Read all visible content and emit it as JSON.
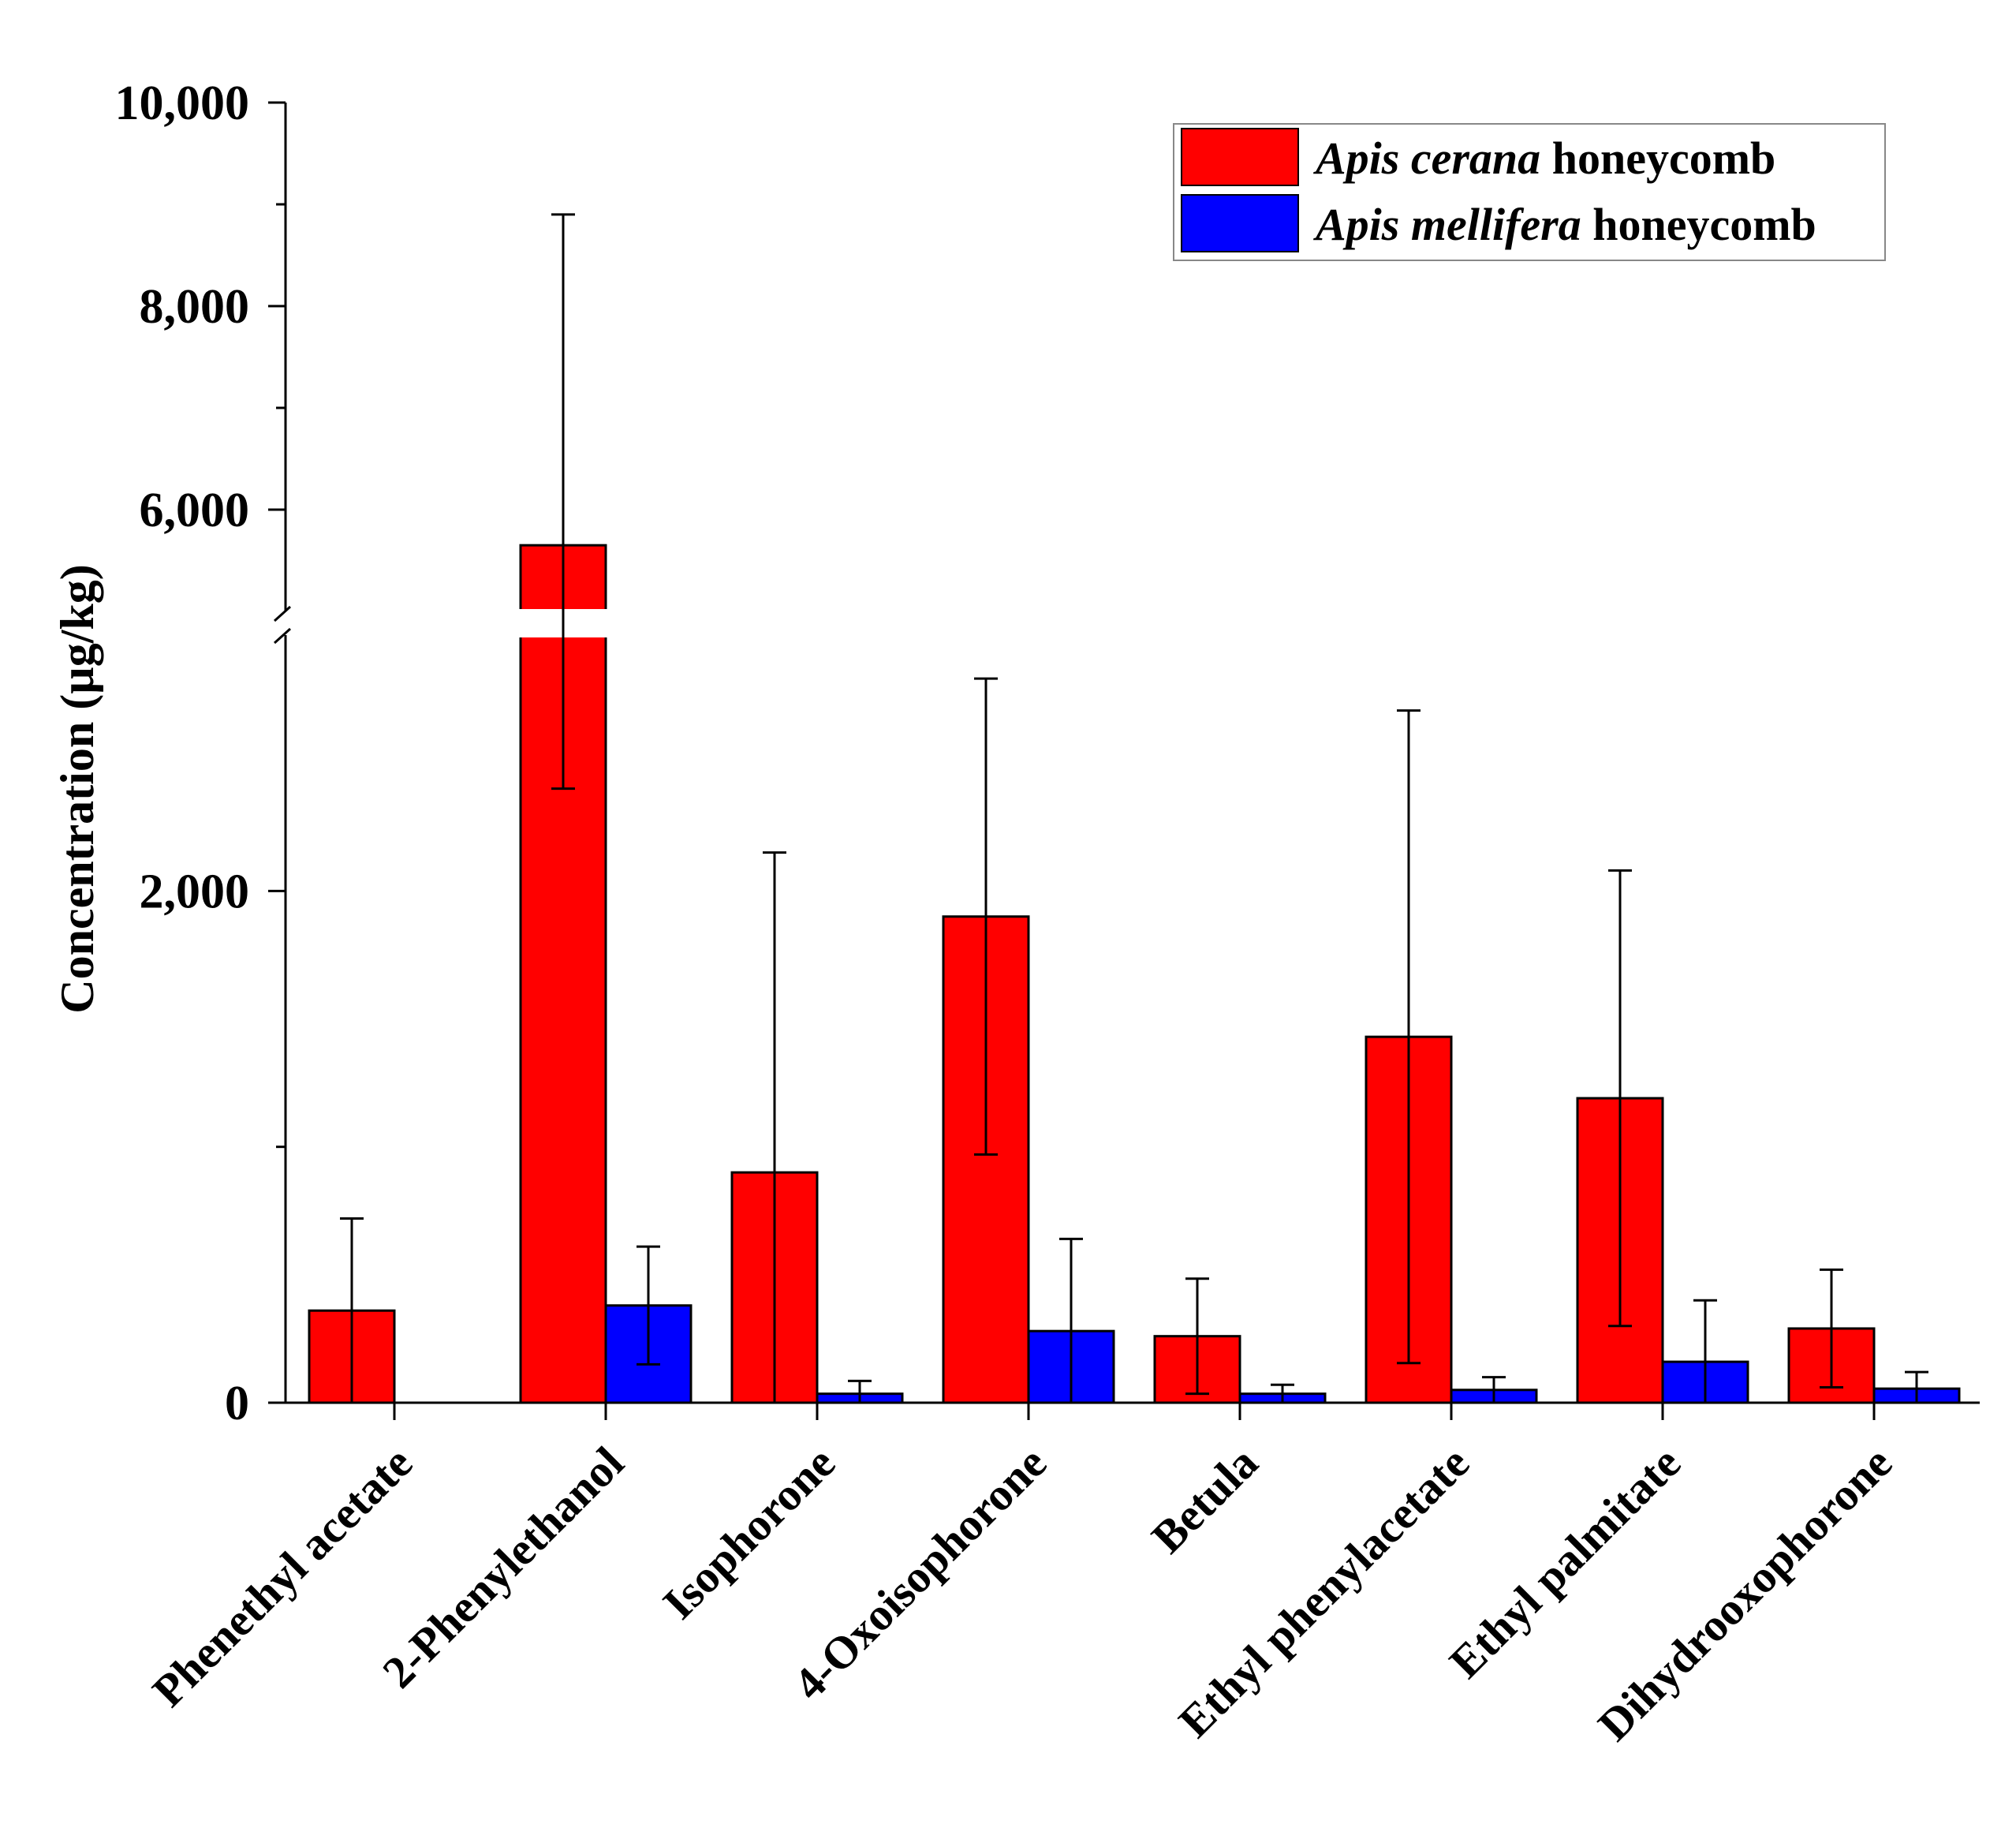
{
  "chart_data": {
    "type": "bar",
    "ylabel": "Concentration (µg/kg)",
    "y_axis": {
      "broken": true,
      "lower_range": [
        0,
        3000
      ],
      "upper_range": [
        5000,
        10000
      ],
      "lower_tick_values": [
        0,
        2000
      ],
      "lower_tick_labels": [
        "0",
        "2,000"
      ],
      "upper_tick_values": [
        6000,
        8000,
        10000
      ],
      "upper_tick_labels": [
        "6,000",
        "8,000",
        "10,000"
      ]
    },
    "categories": [
      "Phenethyl acetate",
      "2-Phenylethanol",
      "Isophorone",
      "4-Oxoisophorone",
      "Betula",
      "Ethyl phenylacetate",
      "Ethyl palmitate",
      "Dihydrooxophorone"
    ],
    "series": [
      {
        "name_italic": "Apis cerana",
        "name_rest": " honeycomb",
        "color": "#ff0000",
        "values": [
          360,
          5650,
          900,
          1900,
          260,
          1430,
          1190,
          290
        ],
        "errors": [
          360,
          3250,
          1250,
          930,
          225,
          1275,
          890,
          230
        ]
      },
      {
        "name_italic": "Apis mellifera",
        "name_rest": " honeycomb",
        "color": "#0000ff",
        "values": [
          0,
          380,
          35,
          280,
          35,
          50,
          160,
          55
        ],
        "errors": [
          0,
          230,
          50,
          360,
          35,
          50,
          240,
          65
        ]
      }
    ],
    "legend_position": "top-right"
  }
}
